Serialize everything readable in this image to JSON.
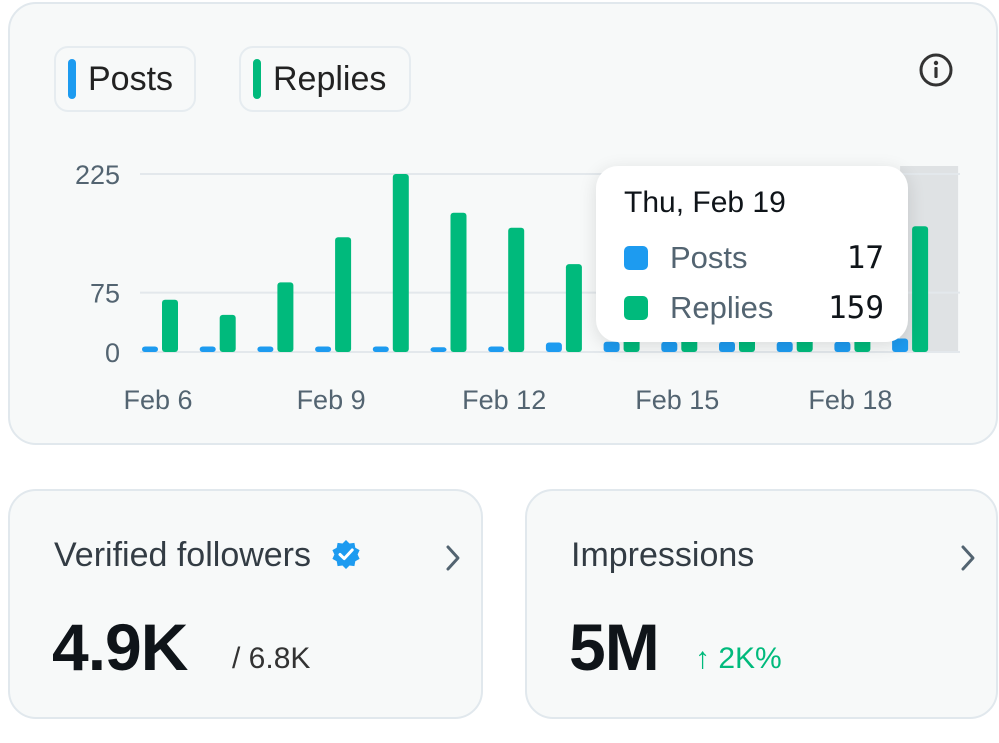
{
  "legend": [
    {
      "label": "Posts",
      "color": "#1d9bf0"
    },
    {
      "label": "Replies",
      "color": "#00ba7c"
    }
  ],
  "info_icon": "info-circle-icon",
  "chart_data": {
    "type": "bar",
    "categories": [
      "Feb 6",
      "Feb 7",
      "Feb 8",
      "Feb 9",
      "Feb 10",
      "Feb 11",
      "Feb 12",
      "Feb 13",
      "Feb 14",
      "Feb 15",
      "Feb 16",
      "Feb 17",
      "Feb 18",
      "Feb 19"
    ],
    "series": [
      {
        "name": "Posts",
        "color": "#1d9bf0",
        "values": [
          7,
          7,
          7,
          7,
          7,
          6,
          7,
          12,
          13,
          13,
          13,
          13,
          13,
          17
        ]
      },
      {
        "name": "Replies",
        "color": "#00ba7c",
        "values": [
          66,
          47,
          88,
          145,
          225,
          176,
          157,
          111,
          95,
          95,
          95,
          95,
          95,
          159
        ]
      }
    ],
    "x_tick_labels": [
      "Feb 6",
      "Feb 9",
      "Feb 12",
      "Feb 15",
      "Feb 18"
    ],
    "y_ticks": [
      0,
      75,
      225
    ],
    "ylim": [
      0,
      225
    ],
    "grid": true,
    "highlighted_category": "Feb 19"
  },
  "tooltip": {
    "date": "Thu, Feb 19",
    "rows": [
      {
        "label": "Posts",
        "value": "17",
        "color": "#1d9bf0"
      },
      {
        "label": "Replies",
        "value": "159",
        "color": "#00ba7c"
      }
    ]
  },
  "cards": {
    "followers": {
      "title": "Verified followers",
      "badge_icon": "verified-badge-icon",
      "value": "4.9K",
      "sub": "/ 6.8K",
      "chevron_icon": "chevron-right-icon"
    },
    "impressions": {
      "title": "Impressions",
      "value": "5M",
      "change": "↑ 2K%",
      "chevron_icon": "chevron-right-icon"
    }
  }
}
